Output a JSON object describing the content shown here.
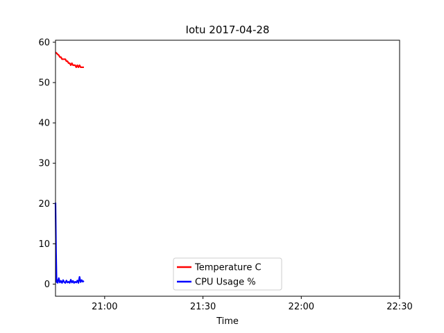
{
  "chart_data": {
    "type": "line",
    "title": "Iotu 2017-04-28",
    "xlabel": "Time",
    "ylabel": "",
    "xlim": [
      "20:45",
      "22:30"
    ],
    "ylim": [
      -3,
      60.5
    ],
    "x_ticks": [
      "21:00",
      "21:30",
      "22:00",
      "22:30"
    ],
    "y_ticks": [
      0,
      10,
      20,
      30,
      40,
      50,
      60
    ],
    "grid": false,
    "legend_position": "bottom-center",
    "series": [
      {
        "name": "Temperature C",
        "color": "#ff0000",
        "x": [
          "20:45:00",
          "20:45:20",
          "20:45:40",
          "20:46:00",
          "20:46:20",
          "20:46:40",
          "20:47:00",
          "20:47:20",
          "20:47:40",
          "20:48:00",
          "20:48:20",
          "20:48:40",
          "20:49:00",
          "20:49:20",
          "20:49:40",
          "20:50:00",
          "20:50:20",
          "20:50:40",
          "20:51:00",
          "20:51:20",
          "20:51:40",
          "20:52:00",
          "20:52:20",
          "20:52:40",
          "20:53:00",
          "20:53:20",
          "20:53:40"
        ],
        "y": [
          57.5,
          57.3,
          57.0,
          56.8,
          56.3,
          56.3,
          55.8,
          55.8,
          55.8,
          55.8,
          55.3,
          55.3,
          54.8,
          54.8,
          54.3,
          54.8,
          54.3,
          54.3,
          54.3,
          53.8,
          54.3,
          53.8,
          54.3,
          53.8,
          53.8,
          53.8,
          53.8
        ]
      },
      {
        "name": "CPU Usage %",
        "color": "#0000ff",
        "x": [
          "20:45:00",
          "20:45:10",
          "20:45:20",
          "20:45:30",
          "20:45:40",
          "20:46:00",
          "20:46:20",
          "20:46:40",
          "20:47:00",
          "20:47:20",
          "20:47:40",
          "20:48:00",
          "20:48:20",
          "20:48:40",
          "20:49:00",
          "20:49:20",
          "20:49:40",
          "20:50:00",
          "20:50:20",
          "20:50:40",
          "20:51:00",
          "20:51:20",
          "20:51:40",
          "20:52:00",
          "20:52:20",
          "20:52:40",
          "20:53:00",
          "20:53:20",
          "20:53:40"
        ],
        "y": [
          20.2,
          8.0,
          0.5,
          1.0,
          0.3,
          1.5,
          0.4,
          0.8,
          0.3,
          1.0,
          0.5,
          0.3,
          0.9,
          0.4,
          0.6,
          0.3,
          1.1,
          0.4,
          0.8,
          0.3,
          0.6,
          0.4,
          0.9,
          0.3,
          1.8,
          0.5,
          1.0,
          0.6,
          0.8
        ]
      }
    ]
  }
}
